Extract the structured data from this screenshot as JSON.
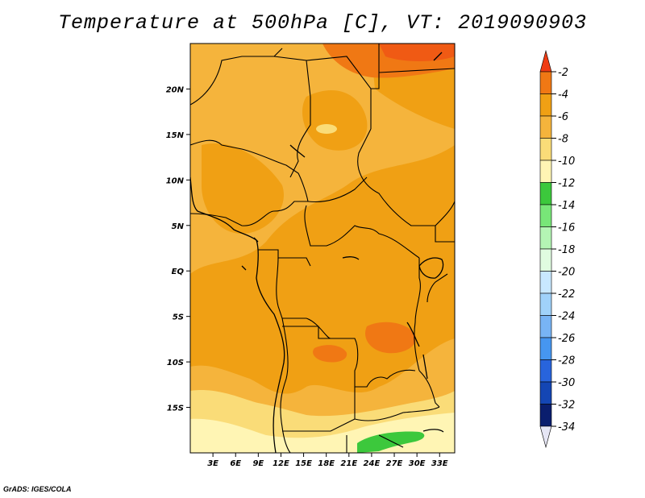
{
  "title": "Temperature at 500hPa [C], VT: 2019090903",
  "credit": "GrADS: IGES/COLA",
  "map": {
    "lon_range": [
      0,
      35
    ],
    "lat_range": [
      -20,
      25
    ],
    "lon_ticks": [
      "3E",
      "6E",
      "9E",
      "12E",
      "15E",
      "18E",
      "21E",
      "24E",
      "27E",
      "30E",
      "33E"
    ],
    "lon_tick_values": [
      3,
      6,
      9,
      12,
      15,
      18,
      21,
      24,
      27,
      30,
      33
    ],
    "lat_ticks": [
      "20N",
      "15N",
      "10N",
      "5N",
      "EQ",
      "5S",
      "10S",
      "15S"
    ],
    "lat_tick_values": [
      20,
      15,
      10,
      5,
      0,
      -5,
      -10,
      -15
    ]
  },
  "legend": {
    "labels": [
      "-2",
      "-4",
      "-6",
      "-8",
      "-10",
      "-12",
      "-14",
      "-16",
      "-18",
      "-20",
      "-22",
      "-24",
      "-26",
      "-28",
      "-30",
      "-32",
      "-34"
    ],
    "colors": [
      "#f03c14",
      "#f07814",
      "#f0a014",
      "#f5b43c",
      "#fadc78",
      "#fff5b4",
      "#3cc83c",
      "#78e678",
      "#b4f5b4",
      "#e0fce0",
      "#c8e8ff",
      "#a0d2fa",
      "#78b4f5",
      "#4696f0",
      "#2864dc",
      "#1446b4",
      "#0a1e6e",
      "#1a2380"
    ],
    "top_color": "#f03c14",
    "bottom_color": "#e6e6f5"
  }
}
